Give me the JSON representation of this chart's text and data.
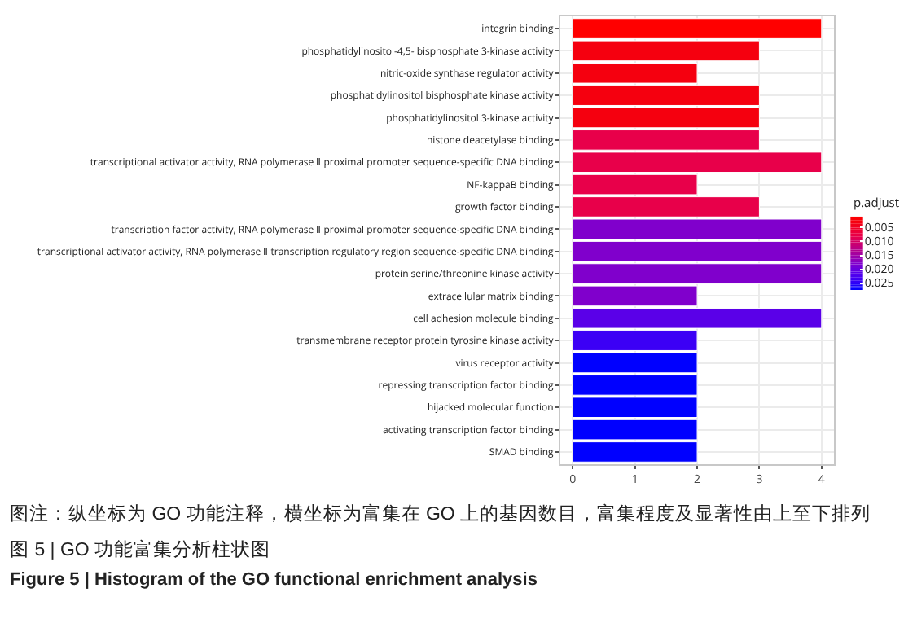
{
  "chart_data": {
    "type": "bar",
    "orientation": "horizontal",
    "title": "图 5 | GO 功能富集分析柱状图",
    "subtitle": "Figure 5 | Histogram of the GO functional enrichment analysis",
    "annotations": [
      "图注：纵坐标为 GO 功能注释，横坐标为富集在 GO 上的基因数目，富集程度及显著性由上至下排列"
    ],
    "categories": [
      "integrin binding",
      "phosphatidylinositol-4,5- bisphosphate 3-kinase activity",
      "nitric-oxide synthase regulator activity",
      "phosphatidylinositol bisphosphate kinase activity",
      "phosphatidylinositol 3-kinase activity",
      "histone deacetylase binding",
      "transcriptional activator activity, RNA polymerase Ⅱ proximal promoter sequence-specific DNA binding",
      "NF-kappaB binding",
      "growth factor binding",
      "transcription factor activity, RNA polymerase Ⅱ proximal promoter sequence-specific DNA binding",
      "transcriptional activator activity, RNA polymerase Ⅱ transcription regulatory region sequence-specific DNA binding",
      "protein serine/threonine kinase activity",
      "extracellular matrix binding",
      "cell adhesion molecule binding",
      "transmembrane receptor protein tyrosine kinase activity",
      "virus receptor activity",
      "repressing transcription factor binding",
      "hijacked molecular function",
      "activating transcription factor binding",
      "SMAD binding"
    ],
    "values": [
      4,
      3,
      2,
      3,
      3,
      3,
      4,
      2,
      3,
      4,
      4,
      4,
      2,
      4,
      2,
      2,
      2,
      2,
      2,
      2
    ],
    "cvalues": [
      0.001,
      0.003,
      0.003,
      0.003,
      0.003,
      0.008,
      0.008,
      0.008,
      0.008,
      0.018,
      0.018,
      0.018,
      0.018,
      0.021,
      0.024,
      0.0275,
      0.0275,
      0.0275,
      0.0275,
      0.0275
    ],
    "colors": [
      "#ff0000",
      "#f5000f",
      "#f5000f",
      "#f5000f",
      "#f5000f",
      "#e8004a",
      "#e8004a",
      "#e8004a",
      "#e8004a",
      "#8000cc",
      "#8000cc",
      "#8000cc",
      "#8000cc",
      "#5a00e8",
      "#3c00f5",
      "#0000ff",
      "#0000ff",
      "#0000ff",
      "#0000ff",
      "#0000ff"
    ],
    "clabel": "p.adjust",
    "clim": [
      0.001,
      0.0275
    ],
    "cticks": [
      0.005,
      {
        "value": 0.01,
        "label": "0.010"
      },
      0.015,
      {
        "value": 0.02,
        "label": "0.020"
      },
      0.025
    ],
    "xlim": [
      -0.2,
      4.2
    ],
    "xticks": [
      0,
      1,
      2,
      3,
      4
    ],
    "grid": true
  }
}
